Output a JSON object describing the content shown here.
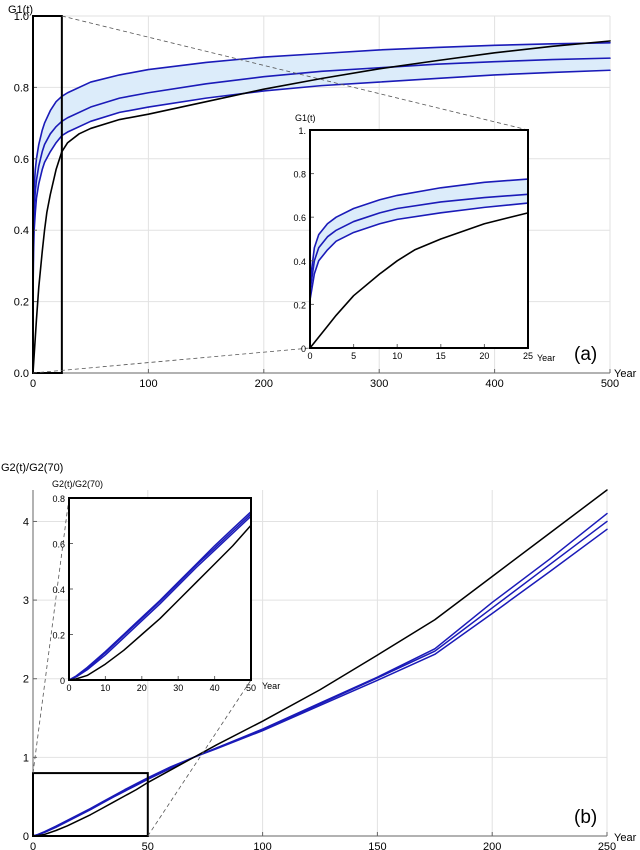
{
  "chart_data": [
    {
      "id": "a",
      "type": "line",
      "panel_label": "(a)",
      "ylabel": "G1(t)",
      "xlabel": "Year",
      "xlim": [
        0,
        500
      ],
      "ylim": [
        0,
        1
      ],
      "x_ticks": [
        "0",
        "100",
        "200",
        "300",
        "400",
        "500"
      ],
      "y_ticks": [
        "0.0",
        "0.2",
        "0.4",
        "0.6",
        "0.8",
        "1.0"
      ],
      "grid": true,
      "band_color": "#dcecfa",
      "blue_color": "#1a1ab8",
      "black_color": "#000000",
      "series": [
        {
          "role": "band-upper",
          "color": "#1a1ab8",
          "points": [
            [
              0,
              0.3
            ],
            [
              0.5,
              0.46
            ],
            [
              1,
              0.52
            ],
            [
              2,
              0.57
            ],
            [
              3,
              0.6
            ],
            [
              5,
              0.64
            ],
            [
              8,
              0.68
            ],
            [
              10,
              0.7
            ],
            [
              15,
              0.735
            ],
            [
              20,
              0.76
            ],
            [
              25,
              0.775
            ],
            [
              30,
              0.785
            ],
            [
              50,
              0.815
            ],
            [
              75,
              0.835
            ],
            [
              100,
              0.85
            ],
            [
              150,
              0.87
            ],
            [
              200,
              0.885
            ],
            [
              250,
              0.895
            ],
            [
              300,
              0.905
            ],
            [
              350,
              0.912
            ],
            [
              400,
              0.918
            ],
            [
              450,
              0.922
            ],
            [
              500,
              0.925
            ]
          ]
        },
        {
          "role": "middle",
          "color": "#1a1ab8",
          "points": [
            [
              0,
              0.26
            ],
            [
              0.5,
              0.4
            ],
            [
              1,
              0.46
            ],
            [
              2,
              0.51
            ],
            [
              3,
              0.54
            ],
            [
              5,
              0.58
            ],
            [
              8,
              0.62
            ],
            [
              10,
              0.64
            ],
            [
              15,
              0.67
            ],
            [
              20,
              0.69
            ],
            [
              25,
              0.705
            ],
            [
              30,
              0.715
            ],
            [
              50,
              0.745
            ],
            [
              75,
              0.77
            ],
            [
              100,
              0.785
            ],
            [
              150,
              0.81
            ],
            [
              200,
              0.83
            ],
            [
              250,
              0.845
            ],
            [
              300,
              0.855
            ],
            [
              350,
              0.865
            ],
            [
              400,
              0.872
            ],
            [
              450,
              0.878
            ],
            [
              500,
              0.882
            ]
          ]
        },
        {
          "role": "band-lower",
          "color": "#1a1ab8",
          "points": [
            [
              0,
              0.22
            ],
            [
              0.5,
              0.34
            ],
            [
              1,
              0.4
            ],
            [
              2,
              0.45
            ],
            [
              3,
              0.49
            ],
            [
              5,
              0.53
            ],
            [
              8,
              0.57
            ],
            [
              10,
              0.59
            ],
            [
              15,
              0.62
            ],
            [
              20,
              0.645
            ],
            [
              25,
              0.665
            ],
            [
              30,
              0.675
            ],
            [
              50,
              0.705
            ],
            [
              75,
              0.73
            ],
            [
              100,
              0.745
            ],
            [
              150,
              0.77
            ],
            [
              200,
              0.79
            ],
            [
              250,
              0.805
            ],
            [
              300,
              0.815
            ],
            [
              350,
              0.825
            ],
            [
              400,
              0.835
            ],
            [
              450,
              0.842
            ],
            [
              500,
              0.848
            ]
          ]
        },
        {
          "role": "black",
          "color": "#000000",
          "points": [
            [
              0,
              0
            ],
            [
              1,
              0.05
            ],
            [
              2,
              0.1
            ],
            [
              3,
              0.15
            ],
            [
              5,
              0.24
            ],
            [
              8,
              0.34
            ],
            [
              10,
              0.4
            ],
            [
              12,
              0.45
            ],
            [
              15,
              0.5
            ],
            [
              20,
              0.57
            ],
            [
              25,
              0.62
            ],
            [
              30,
              0.645
            ],
            [
              40,
              0.67
            ],
            [
              50,
              0.685
            ],
            [
              75,
              0.71
            ],
            [
              100,
              0.725
            ],
            [
              150,
              0.76
            ],
            [
              200,
              0.795
            ],
            [
              250,
              0.825
            ],
            [
              300,
              0.852
            ],
            [
              350,
              0.875
            ],
            [
              400,
              0.897
            ],
            [
              450,
              0.915
            ],
            [
              500,
              0.93
            ]
          ]
        }
      ],
      "zoom_box": {
        "x": [
          0,
          25
        ],
        "y": [
          0,
          1
        ]
      },
      "inset": {
        "ylabel": "G1(t)",
        "xlabel": "Year",
        "xlim": [
          0,
          25
        ],
        "ylim": [
          0,
          1
        ],
        "x_ticks": [
          "0",
          "5",
          "10",
          "15",
          "20",
          "25"
        ],
        "y_ticks": [
          "0",
          "0.2",
          "0.4",
          "0.6",
          "0.8",
          "1."
        ]
      }
    },
    {
      "id": "b",
      "type": "line",
      "panel_label": "(b)",
      "ylabel": "G2(t)/G2(70)",
      "xlabel": "Year",
      "xlim": [
        0,
        250
      ],
      "ylim": [
        0,
        4.4
      ],
      "x_ticks": [
        "0",
        "50",
        "100",
        "150",
        "200",
        "250"
      ],
      "y_ticks": [
        "0",
        "1",
        "2",
        "3",
        "4"
      ],
      "grid": true,
      "blue_color": "#1a1ab8",
      "black_color": "#000000",
      "series": [
        {
          "role": "upper",
          "color": "#1a1ab8",
          "points": [
            [
              0,
              0
            ],
            [
              2,
              0.018
            ],
            [
              5,
              0.055
            ],
            [
              10,
              0.125
            ],
            [
              15,
              0.2
            ],
            [
              20,
              0.275
            ],
            [
              25,
              0.35
            ],
            [
              30,
              0.43
            ],
            [
              35,
              0.51
            ],
            [
              40,
              0.59
            ],
            [
              45,
              0.665
            ],
            [
              50,
              0.74
            ],
            [
              60,
              0.88
            ],
            [
              70,
              1.0
            ],
            [
              80,
              1.12
            ],
            [
              100,
              1.36
            ],
            [
              125,
              1.69
            ],
            [
              150,
              2.02
            ],
            [
              175,
              2.38
            ],
            [
              200,
              2.97
            ],
            [
              225,
              3.52
            ],
            [
              250,
              4.1
            ]
          ]
        },
        {
          "role": "middle",
          "color": "#1a1ab8",
          "points": [
            [
              0,
              0
            ],
            [
              2,
              0.016
            ],
            [
              5,
              0.05
            ],
            [
              10,
              0.12
            ],
            [
              15,
              0.195
            ],
            [
              20,
              0.27
            ],
            [
              25,
              0.345
            ],
            [
              30,
              0.425
            ],
            [
              35,
              0.505
            ],
            [
              40,
              0.58
            ],
            [
              45,
              0.655
            ],
            [
              50,
              0.73
            ],
            [
              60,
              0.87
            ],
            [
              70,
              1.0
            ],
            [
              80,
              1.12
            ],
            [
              100,
              1.35
            ],
            [
              125,
              1.68
            ],
            [
              150,
              2.01
            ],
            [
              175,
              2.35
            ],
            [
              200,
              2.9
            ],
            [
              225,
              3.45
            ],
            [
              250,
              4.0
            ]
          ]
        },
        {
          "role": "lower",
          "color": "#1a1ab8",
          "points": [
            [
              0,
              0
            ],
            [
              2,
              0.014
            ],
            [
              5,
              0.045
            ],
            [
              10,
              0.11
            ],
            [
              15,
              0.185
            ],
            [
              20,
              0.26
            ],
            [
              25,
              0.335
            ],
            [
              30,
              0.415
            ],
            [
              35,
              0.495
            ],
            [
              40,
              0.57
            ],
            [
              45,
              0.645
            ],
            [
              50,
              0.72
            ],
            [
              60,
              0.86
            ],
            [
              70,
              1.0
            ],
            [
              80,
              1.11
            ],
            [
              100,
              1.34
            ],
            [
              125,
              1.66
            ],
            [
              150,
              1.98
            ],
            [
              175,
              2.31
            ],
            [
              200,
              2.83
            ],
            [
              225,
              3.36
            ],
            [
              250,
              3.9
            ]
          ]
        },
        {
          "role": "black",
          "color": "#000000",
          "points": [
            [
              0,
              0
            ],
            [
              2,
              0.005
            ],
            [
              5,
              0.02
            ],
            [
              10,
              0.07
            ],
            [
              15,
              0.13
            ],
            [
              20,
              0.2
            ],
            [
              25,
              0.27
            ],
            [
              30,
              0.35
            ],
            [
              35,
              0.43
            ],
            [
              40,
              0.51
            ],
            [
              45,
              0.59
            ],
            [
              50,
              0.68
            ],
            [
              60,
              0.84
            ],
            [
              70,
              1.0
            ],
            [
              80,
              1.16
            ],
            [
              100,
              1.46
            ],
            [
              125,
              1.86
            ],
            [
              150,
              2.3
            ],
            [
              175,
              2.75
            ],
            [
              200,
              3.3
            ],
            [
              225,
              3.85
            ],
            [
              250,
              4.4
            ]
          ]
        }
      ],
      "zoom_box": {
        "x": [
          0,
          50
        ],
        "y": [
          0,
          0.8
        ]
      },
      "inset": {
        "ylabel": "G2(t)/G2(70)",
        "xlabel": "Year",
        "xlim": [
          0,
          50
        ],
        "ylim": [
          0,
          0.8
        ],
        "x_ticks": [
          "0",
          "10",
          "20",
          "30",
          "40",
          "50"
        ],
        "y_ticks": [
          "0",
          "0.2",
          "0.4",
          "0.6",
          "0.8"
        ]
      }
    }
  ]
}
